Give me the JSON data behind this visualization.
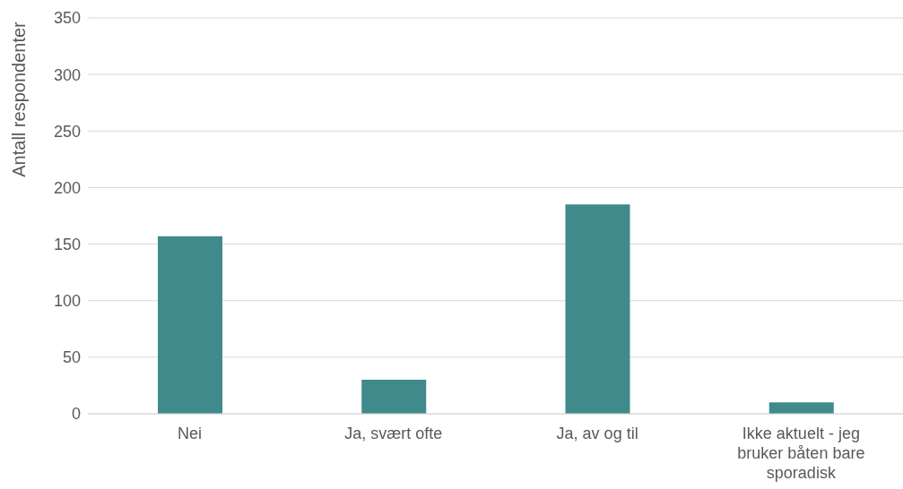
{
  "chart_data": {
    "type": "bar",
    "ylabel": "Antall respondenter",
    "categories": [
      "Nei",
      "Ja, svært ofte",
      "Ja, av og til",
      "Ikke aktuelt - jeg bruker båten bare sporadisk"
    ],
    "values": [
      157,
      30,
      185,
      10
    ],
    "color": "#418a8c",
    "ylim": [
      0,
      350
    ],
    "yticks": [
      0,
      50,
      100,
      150,
      200,
      250,
      300,
      350
    ],
    "grid": "y"
  }
}
